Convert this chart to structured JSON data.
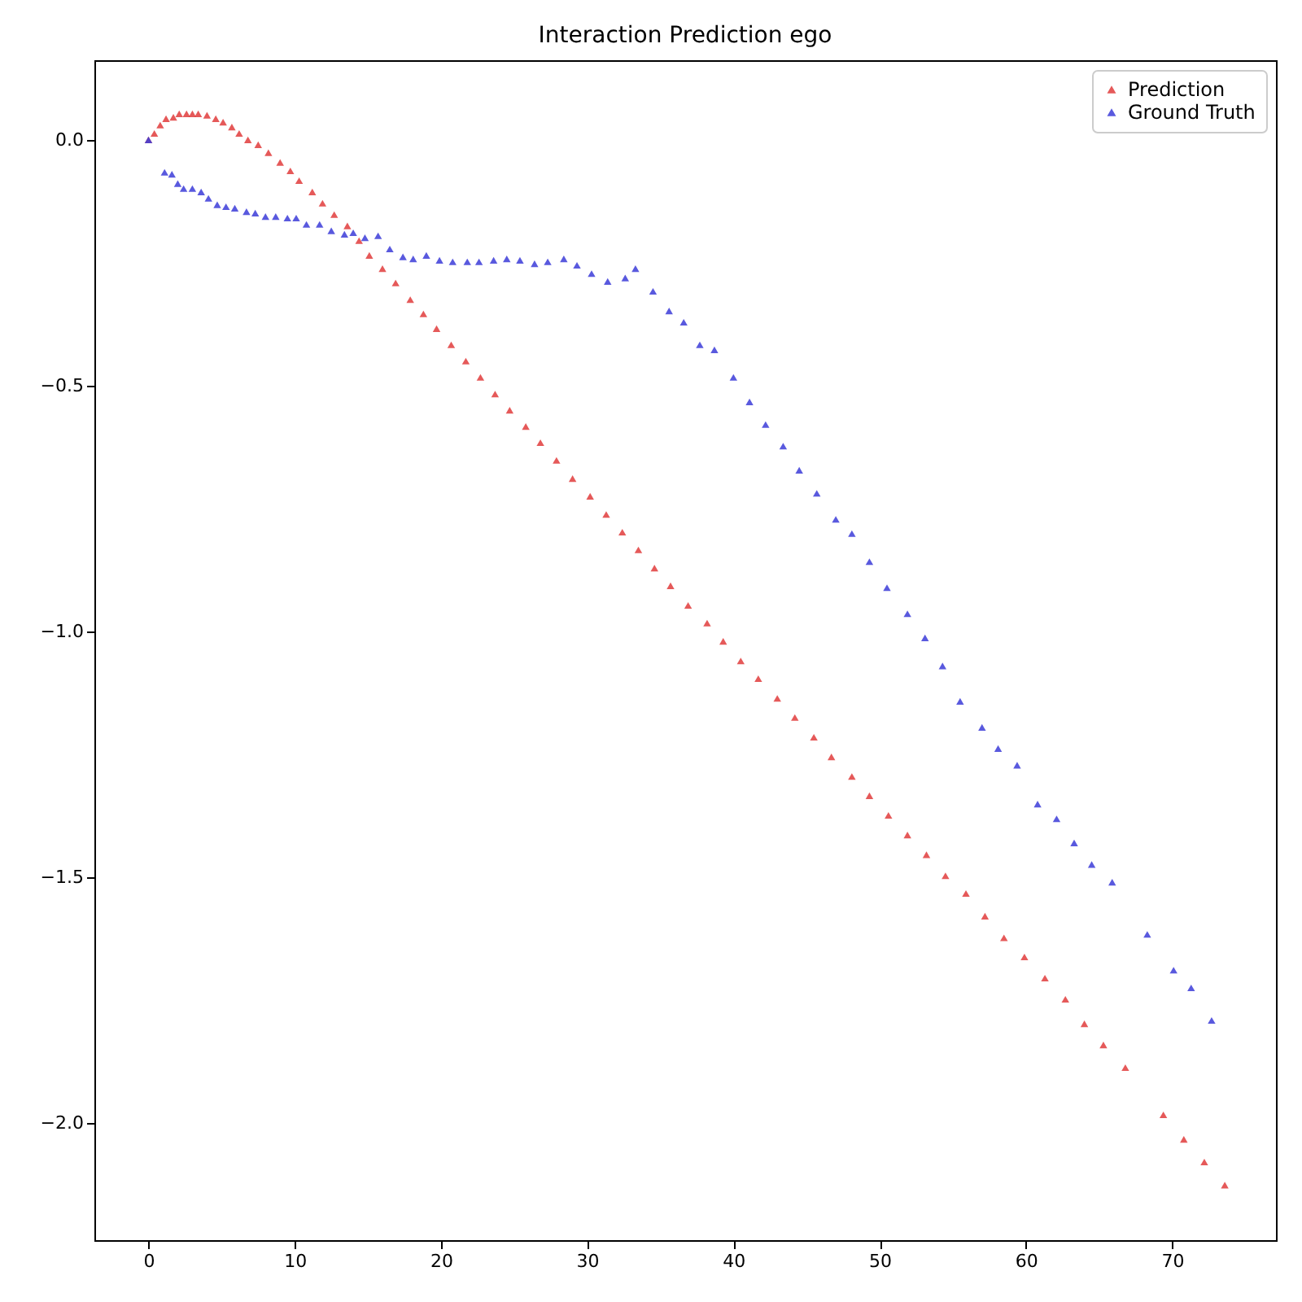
{
  "chart_data": {
    "type": "scatter",
    "title": "Interaction Prediction ego",
    "marker": "triangle",
    "legend": "top right",
    "grid": false,
    "xlim": [
      -3.7,
      77.1
    ],
    "ylim": [
      -2.238,
      0.162
    ],
    "xticks": [
      0,
      10,
      20,
      30,
      40,
      50,
      60,
      70
    ],
    "yticks": [
      {
        "value": -2,
        "label": "−2.0"
      },
      {
        "value": -1.5,
        "label": "−1.5"
      },
      {
        "value": -1,
        "label": "−1.0"
      },
      {
        "value": -0.5,
        "label": "−0.5"
      },
      {
        "value": 0,
        "label": "0.0"
      }
    ],
    "series": [
      {
        "name": "Prediction",
        "color": "#e03c3c",
        "x": [
          0,
          0.4,
          0.8,
          1.2,
          1.7,
          2.1,
          2.6,
          3.0,
          3.4,
          4.0,
          4.6,
          5.1,
          5.7,
          6.2,
          6.8,
          7.5,
          8.2,
          9.0,
          9.7,
          10.3,
          11.2,
          11.9,
          12.7,
          13.6,
          14.4,
          15.1,
          16.0,
          16.9,
          17.9,
          18.8,
          19.7,
          20.7,
          21.7,
          22.7,
          23.7,
          24.7,
          25.8,
          26.8,
          27.9,
          29.0,
          30.2,
          31.3,
          32.4,
          33.5,
          34.6,
          35.7,
          36.9,
          38.2,
          39.3,
          40.5,
          41.7,
          43.0,
          44.2,
          45.5,
          46.7,
          48.1,
          49.3,
          50.6,
          51.9,
          53.2,
          54.5,
          55.9,
          57.2,
          58.5,
          59.9,
          61.3,
          62.7,
          64.0,
          65.3,
          66.8,
          69.4,
          70.8,
          72.2,
          73.6
        ],
        "values": [
          0,
          0.013,
          0.03,
          0.043,
          0.046,
          0.053,
          0.053,
          0.053,
          0.053,
          0.05,
          0.043,
          0.036,
          0.026,
          0.013,
          0,
          -0.01,
          -0.026,
          -0.046,
          -0.063,
          -0.083,
          -0.106,
          -0.129,
          -0.152,
          -0.175,
          -0.205,
          -0.235,
          -0.262,
          -0.291,
          -0.325,
          -0.354,
          -0.384,
          -0.417,
          -0.45,
          -0.483,
          -0.517,
          -0.55,
          -0.583,
          -0.616,
          -0.652,
          -0.689,
          -0.725,
          -0.762,
          -0.798,
          -0.834,
          -0.871,
          -0.907,
          -0.947,
          -0.983,
          -1.02,
          -1.06,
          -1.096,
          -1.136,
          -1.175,
          -1.215,
          -1.255,
          -1.295,
          -1.334,
          -1.374,
          -1.414,
          -1.454,
          -1.497,
          -1.533,
          -1.579,
          -1.623,
          -1.662,
          -1.705,
          -1.748,
          -1.798,
          -1.841,
          -1.887,
          -1.983,
          -2.033,
          -2.079,
          -2.126
        ]
      },
      {
        "name": "Ground Truth",
        "color": "#3c3cd8",
        "x": [
          0,
          1.1,
          1.6,
          2.0,
          2.4,
          3.0,
          3.6,
          4.1,
          4.7,
          5.3,
          5.9,
          6.7,
          7.3,
          8.0,
          8.7,
          9.5,
          10.1,
          10.8,
          11.7,
          12.5,
          13.4,
          14.0,
          14.8,
          15.7,
          16.5,
          17.4,
          18.1,
          19.0,
          19.9,
          20.8,
          21.8,
          22.6,
          23.6,
          24.5,
          25.4,
          26.4,
          27.3,
          28.4,
          29.3,
          30.3,
          31.4,
          32.6,
          33.3,
          34.5,
          35.6,
          36.6,
          37.7,
          38.7,
          40.0,
          41.1,
          42.2,
          43.4,
          44.5,
          45.7,
          47.0,
          48.1,
          49.3,
          50.5,
          51.9,
          53.1,
          54.3,
          55.5,
          57.0,
          58.1,
          59.4,
          60.8,
          62.1,
          63.3,
          64.5,
          65.9,
          68.3,
          70.1,
          71.3,
          72.7
        ],
        "values": [
          0,
          -0.066,
          -0.07,
          -0.089,
          -0.099,
          -0.099,
          -0.106,
          -0.119,
          -0.132,
          -0.136,
          -0.139,
          -0.146,
          -0.149,
          -0.156,
          -0.156,
          -0.159,
          -0.159,
          -0.172,
          -0.172,
          -0.185,
          -0.192,
          -0.189,
          -0.199,
          -0.195,
          -0.222,
          -0.238,
          -0.242,
          -0.235,
          -0.245,
          -0.248,
          -0.248,
          -0.248,
          -0.245,
          -0.242,
          -0.245,
          -0.252,
          -0.248,
          -0.242,
          -0.255,
          -0.272,
          -0.288,
          -0.281,
          -0.262,
          -0.308,
          -0.348,
          -0.371,
          -0.417,
          -0.427,
          -0.483,
          -0.533,
          -0.579,
          -0.623,
          -0.672,
          -0.719,
          -0.772,
          -0.801,
          -0.858,
          -0.911,
          -0.964,
          -1.013,
          -1.07,
          -1.142,
          -1.195,
          -1.238,
          -1.272,
          -1.351,
          -1.381,
          -1.43,
          -1.474,
          -1.51,
          -1.616,
          -1.689,
          -1.725,
          -1.791
        ]
      }
    ]
  }
}
